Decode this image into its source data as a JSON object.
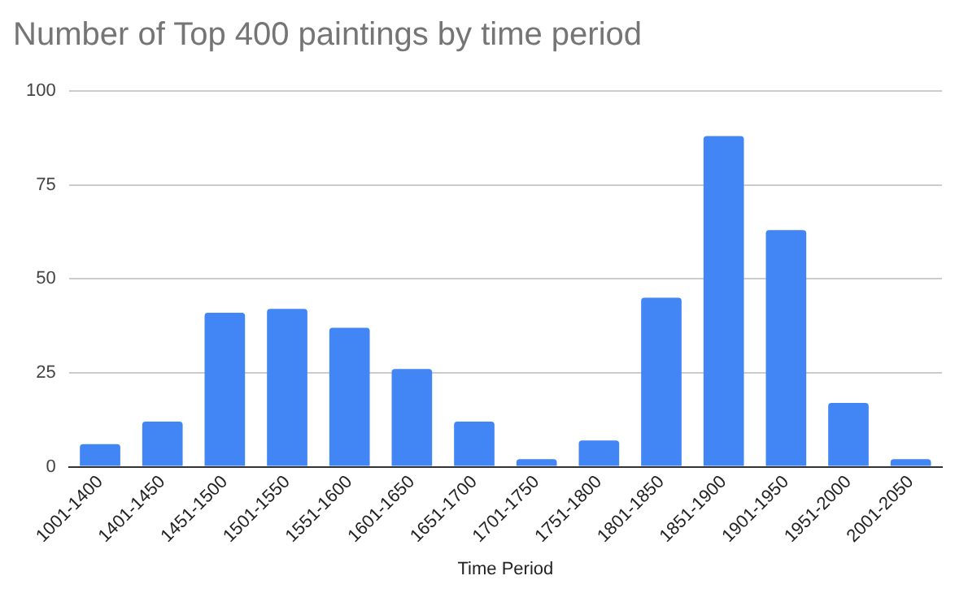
{
  "chart_data": {
    "type": "bar",
    "title": "Number of Top 400 paintings by time period",
    "xlabel": "Time Period",
    "categories": [
      "1001-1400",
      "1401-1450",
      "1451-1500",
      "1501-1550",
      "1551-1600",
      "1601-1650",
      "1651-1700",
      "1701-1750",
      "1751-1800",
      "1801-1850",
      "1851-1900",
      "1901-1950",
      "1951-2000",
      "2001-2050"
    ],
    "values": [
      6,
      12,
      41,
      42,
      37,
      26,
      12,
      2,
      7,
      45,
      88,
      63,
      17,
      2
    ],
    "color": "#4285f4",
    "ylim": [
      0,
      100
    ],
    "yticks": [
      0,
      25,
      50,
      75,
      100
    ],
    "grid": "y",
    "legend": false
  }
}
